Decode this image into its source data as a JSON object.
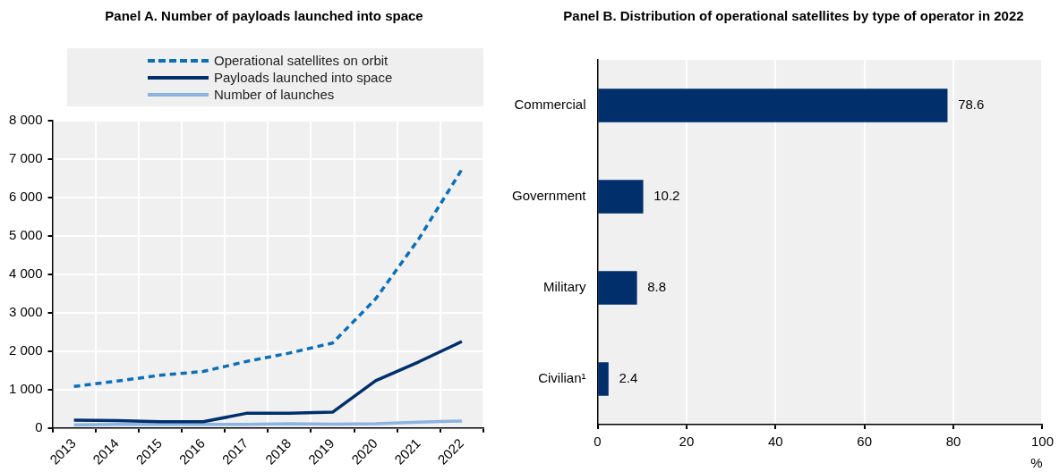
{
  "chart_data": [
    {
      "type": "line",
      "title": "Panel A. Number of payloads launched into space",
      "categories": [
        "2013",
        "2014",
        "2015",
        "2016",
        "2017",
        "2018",
        "2019",
        "2020",
        "2021",
        "2022"
      ],
      "series": [
        {
          "name": "Operational satellites on orbit",
          "color": "#0b6fba",
          "line_style": "dashed",
          "values": [
            1080,
            1220,
            1370,
            1470,
            1730,
            1950,
            2210,
            3360,
            4920,
            6730
          ]
        },
        {
          "name": "Payloads launched into space",
          "color": "#002f6c",
          "line_style": "solid",
          "values": [
            200,
            190,
            160,
            160,
            380,
            380,
            410,
            1230,
            1720,
            2250
          ]
        },
        {
          "name": "Number of launches",
          "color": "#8cb4e2",
          "line_style": "solid",
          "values": [
            80,
            90,
            90,
            90,
            90,
            110,
            100,
            110,
            150,
            180
          ]
        }
      ],
      "ylim": [
        0,
        8000
      ],
      "yticks": [
        0,
        {
          "value": 1000,
          "label": "1 000"
        },
        {
          "value": 2000,
          "label": "2 000"
        },
        {
          "value": 3000,
          "label": "3 000"
        },
        {
          "value": 4000,
          "label": "4 000"
        },
        {
          "value": 5000,
          "label": "5 000"
        },
        {
          "value": 6000,
          "label": "6 000"
        },
        {
          "value": 7000,
          "label": "7 000"
        },
        {
          "value": 8000,
          "label": "8 000"
        }
      ],
      "grid": true,
      "legend": "top",
      "marker": "none"
    },
    {
      "type": "bar",
      "orientation": "horizontal",
      "title": "Panel B. Distribution of operational satellites by type of operator in 2022",
      "categories": [
        "Commercial",
        "Government",
        "Military",
        "Civilian¹"
      ],
      "values": [
        78.6,
        10.2,
        8.8,
        2.4
      ],
      "color": "#002f6c",
      "xlim": [
        0,
        100
      ],
      "xticks": [
        0,
        20,
        40,
        60,
        80,
        100
      ],
      "xlabel": "%",
      "grid": "x",
      "data_labels": true
    }
  ]
}
